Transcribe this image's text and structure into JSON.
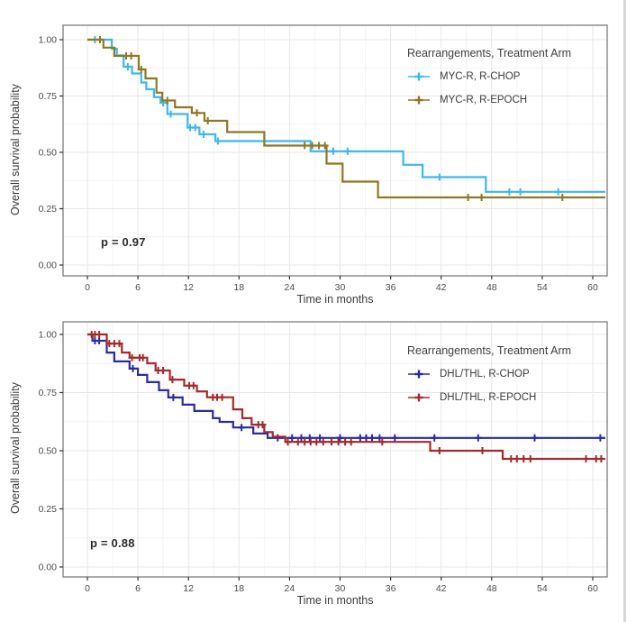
{
  "figure": {
    "p_values": [
      "p = 0.97",
      "p = 0.88"
    ]
  },
  "chart_data": [
    {
      "type": "line",
      "subtype": "kaplan-meier-step",
      "title": "",
      "xlabel": "Time in months",
      "ylabel": "Overall survival probability",
      "p_value_label": "p = 0.97",
      "legend_title": "Rearrangements, Treatment Arm",
      "legend_position": "top-right-inside",
      "grid": "on",
      "xlim": [
        -2.9,
        61.7
      ],
      "ylim": [
        -0.05,
        1.06
      ],
      "x_tick_values": [
        0,
        6,
        12,
        18,
        24,
        30,
        36,
        42,
        48,
        54,
        60
      ],
      "x_tick_labels": [
        "0",
        "6",
        "12",
        "18",
        "24",
        "30",
        "36",
        "42",
        "48",
        "54",
        "60"
      ],
      "y_tick_values": [
        0,
        0.25,
        0.5,
        0.75,
        1.0
      ],
      "y_tick_labels": [
        "0.00",
        "0.25",
        "0.50",
        "0.75",
        "1.00"
      ],
      "censor_marker": "plus",
      "series": [
        {
          "name": "MYC-R, R-CHOP",
          "color": "#3EB7EC",
          "end": 61.5,
          "steps": [
            [
              0,
              1.0
            ],
            [
              2.9,
              0.96
            ],
            [
              3.5,
              0.93
            ],
            [
              4.3,
              0.88
            ],
            [
              5.3,
              0.85
            ],
            [
              6.4,
              0.81
            ],
            [
              7.0,
              0.78
            ],
            [
              7.9,
              0.745
            ],
            [
              8.7,
              0.72
            ],
            [
              9.5,
              0.67
            ],
            [
              11.9,
              0.61
            ],
            [
              13.3,
              0.58
            ],
            [
              15.2,
              0.55
            ],
            [
              26.5,
              0.505
            ],
            [
              37.5,
              0.445
            ],
            [
              39.8,
              0.39
            ],
            [
              47.3,
              0.325
            ]
          ],
          "censors": [
            [
              0.9,
              1.0
            ],
            [
              4.8,
              0.88
            ],
            [
              9.0,
              0.72
            ],
            [
              9.9,
              0.67
            ],
            [
              12.2,
              0.61
            ],
            [
              12.8,
              0.61
            ],
            [
              13.8,
              0.58
            ],
            [
              15.5,
              0.55
            ],
            [
              29.2,
              0.505
            ],
            [
              30.9,
              0.505
            ],
            [
              41.8,
              0.39
            ],
            [
              50.1,
              0.325
            ],
            [
              51.4,
              0.325
            ],
            [
              55.9,
              0.325
            ]
          ]
        },
        {
          "name": "MYC-R, R-EPOCH",
          "color": "#8E7822",
          "end": 61.5,
          "steps": [
            [
              0,
              1.0
            ],
            [
              1.9,
              0.965
            ],
            [
              3.2,
              0.928
            ],
            [
              6.1,
              0.868
            ],
            [
              6.9,
              0.828
            ],
            [
              8.2,
              0.765
            ],
            [
              8.9,
              0.73
            ],
            [
              10.4,
              0.7
            ],
            [
              12.4,
              0.675
            ],
            [
              13.9,
              0.64
            ],
            [
              16.6,
              0.59
            ],
            [
              21.0,
              0.53
            ],
            [
              28.4,
              0.45
            ],
            [
              30.3,
              0.37
            ],
            [
              34.5,
              0.3
            ]
          ],
          "censors": [
            [
              1.5,
              1.0
            ],
            [
              4.6,
              0.928
            ],
            [
              5.2,
              0.928
            ],
            [
              6.4,
              0.868
            ],
            [
              9.5,
              0.73
            ],
            [
              13.0,
              0.675
            ],
            [
              14.3,
              0.64
            ],
            [
              25.8,
              0.53
            ],
            [
              26.7,
              0.53
            ],
            [
              27.5,
              0.53
            ],
            [
              28.2,
              0.53
            ],
            [
              45.2,
              0.3
            ],
            [
              46.8,
              0.3
            ],
            [
              56.4,
              0.3
            ]
          ]
        }
      ]
    },
    {
      "type": "line",
      "subtype": "kaplan-meier-step",
      "title": "",
      "xlabel": "Time in months",
      "ylabel": "Overall survival probability",
      "p_value_label": "p = 0.88",
      "legend_title": "Rearrangements, Treatment Arm",
      "legend_position": "top-right-inside",
      "grid": "on",
      "xlim": [
        -2.9,
        61.7
      ],
      "ylim": [
        -0.05,
        1.05
      ],
      "x_tick_values": [
        0,
        6,
        12,
        18,
        24,
        30,
        36,
        42,
        48,
        54,
        60
      ],
      "x_tick_labels": [
        "0",
        "6",
        "12",
        "18",
        "24",
        "30",
        "36",
        "42",
        "48",
        "54",
        "60"
      ],
      "y_tick_values": [
        0,
        0.25,
        0.5,
        0.75,
        1.0
      ],
      "y_tick_labels": [
        "0.00",
        "0.25",
        "0.50",
        "0.75",
        "1.00"
      ],
      "censor_marker": "plus",
      "series": [
        {
          "name": "DHL/THL, R-CHOP",
          "color": "#2B2BA3",
          "end": 61.5,
          "steps": [
            [
              0,
              1.0
            ],
            [
              0.6,
              0.973
            ],
            [
              2.3,
              0.922
            ],
            [
              3.2,
              0.884
            ],
            [
              5.0,
              0.853
            ],
            [
              6.0,
              0.826
            ],
            [
              7.1,
              0.795
            ],
            [
              8.5,
              0.76
            ],
            [
              9.6,
              0.729
            ],
            [
              11.3,
              0.698
            ],
            [
              12.7,
              0.671
            ],
            [
              14.9,
              0.64
            ],
            [
              15.7,
              0.624
            ],
            [
              17.3,
              0.6
            ],
            [
              19.7,
              0.574
            ],
            [
              21.4,
              0.555
            ]
          ],
          "censors": [
            [
              0.9,
              0.973
            ],
            [
              1.4,
              0.973
            ],
            [
              5.4,
              0.853
            ],
            [
              10.2,
              0.729
            ],
            [
              18.3,
              0.6
            ],
            [
              22.6,
              0.555
            ],
            [
              24.3,
              0.555
            ],
            [
              25.4,
              0.555
            ],
            [
              26.4,
              0.555
            ],
            [
              27.6,
              0.555
            ],
            [
              30.0,
              0.555
            ],
            [
              32.4,
              0.555
            ],
            [
              33.1,
              0.555
            ],
            [
              33.8,
              0.555
            ],
            [
              34.7,
              0.555
            ],
            [
              36.5,
              0.555
            ],
            [
              41.2,
              0.555
            ],
            [
              46.4,
              0.555
            ],
            [
              53.1,
              0.555
            ],
            [
              60.9,
              0.555
            ]
          ]
        },
        {
          "name": "DHL/THL, R-EPOCH",
          "color": "#A32B2B",
          "end": 61.5,
          "steps": [
            [
              0,
              1.0
            ],
            [
              2.3,
              0.961
            ],
            [
              4.1,
              0.922
            ],
            [
              5.0,
              0.9
            ],
            [
              7.1,
              0.876
            ],
            [
              8.1,
              0.845
            ],
            [
              9.8,
              0.806
            ],
            [
              11.5,
              0.78
            ],
            [
              13.0,
              0.755
            ],
            [
              14.2,
              0.73
            ],
            [
              17.3,
              0.678
            ],
            [
              18.4,
              0.64
            ],
            [
              19.5,
              0.612
            ],
            [
              21.0,
              0.58
            ],
            [
              22.0,
              0.56
            ],
            [
              23.5,
              0.538
            ],
            [
              40.7,
              0.5
            ],
            [
              49.3,
              0.465
            ]
          ],
          "censors": [
            [
              0.5,
              1.0
            ],
            [
              0.9,
              1.0
            ],
            [
              1.4,
              1.0
            ],
            [
              2.6,
              0.961
            ],
            [
              3.2,
              0.961
            ],
            [
              3.8,
              0.961
            ],
            [
              5.3,
              0.9
            ],
            [
              6.2,
              0.9
            ],
            [
              6.6,
              0.9
            ],
            [
              8.4,
              0.845
            ],
            [
              9.0,
              0.845
            ],
            [
              10.1,
              0.806
            ],
            [
              12.1,
              0.78
            ],
            [
              12.6,
              0.78
            ],
            [
              14.9,
              0.73
            ],
            [
              15.4,
              0.73
            ],
            [
              16.0,
              0.73
            ],
            [
              20.3,
              0.612
            ],
            [
              20.8,
              0.612
            ],
            [
              23.8,
              0.538
            ],
            [
              25.0,
              0.538
            ],
            [
              25.8,
              0.538
            ],
            [
              26.5,
              0.538
            ],
            [
              27.2,
              0.538
            ],
            [
              28.0,
              0.538
            ],
            [
              29.0,
              0.538
            ],
            [
              29.8,
              0.538
            ],
            [
              30.6,
              0.538
            ],
            [
              31.3,
              0.538
            ],
            [
              35.0,
              0.538
            ],
            [
              41.8,
              0.5
            ],
            [
              46.9,
              0.5
            ],
            [
              50.3,
              0.465
            ],
            [
              51.0,
              0.465
            ],
            [
              51.8,
              0.465
            ],
            [
              52.6,
              0.465
            ],
            [
              59.2,
              0.465
            ],
            [
              60.4,
              0.465
            ],
            [
              61.0,
              0.465
            ]
          ]
        }
      ]
    }
  ]
}
